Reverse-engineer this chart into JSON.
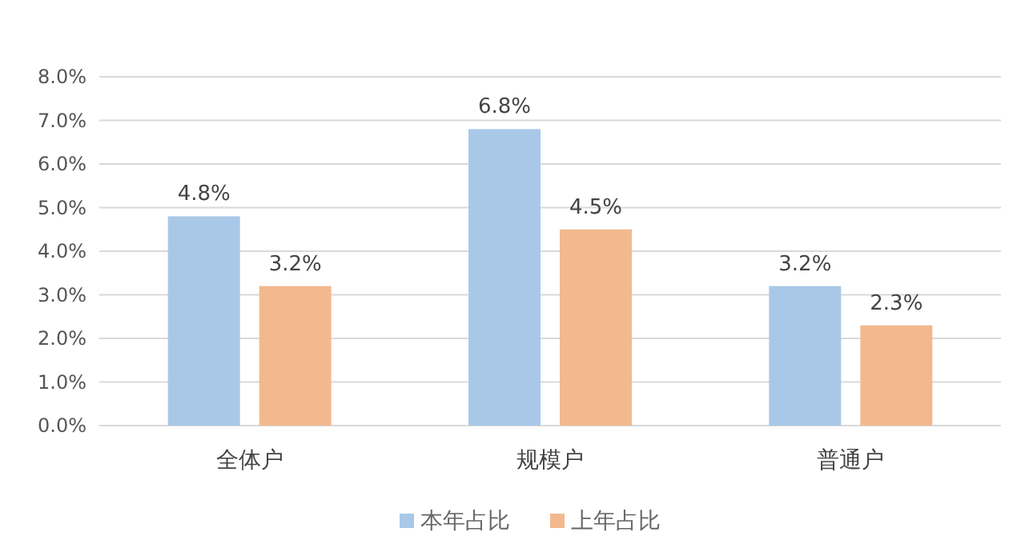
{
  "chart_data": {
    "type": "bar",
    "categories": [
      "全体户",
      "规模户",
      "普通户"
    ],
    "series": [
      {
        "name": "本年占比",
        "color": "#a9c8e8",
        "values": [
          4.8,
          6.8,
          3.2
        ],
        "value_labels": [
          "4.8%",
          "6.8%",
          "3.2%"
        ]
      },
      {
        "name": "上年占比",
        "color": "#f2b98e",
        "values": [
          3.2,
          4.5,
          2.3
        ],
        "value_labels": [
          "3.2%",
          "4.5%",
          "2.3%"
        ]
      }
    ],
    "ylim": [
      0,
      8
    ],
    "yticks": [
      {
        "value": 0,
        "label": "0.0%"
      },
      {
        "value": 1,
        "label": "1.0%"
      },
      {
        "value": 2,
        "label": "2.0%"
      },
      {
        "value": 3,
        "label": "3.0%"
      },
      {
        "value": 4,
        "label": "4.0%"
      },
      {
        "value": 5,
        "label": "5.0%"
      },
      {
        "value": 6,
        "label": "6.0%"
      },
      {
        "value": 7,
        "label": "7.0%"
      },
      {
        "value": 8,
        "label": "8.0%"
      }
    ],
    "grid": "y",
    "legend": "bottom"
  }
}
